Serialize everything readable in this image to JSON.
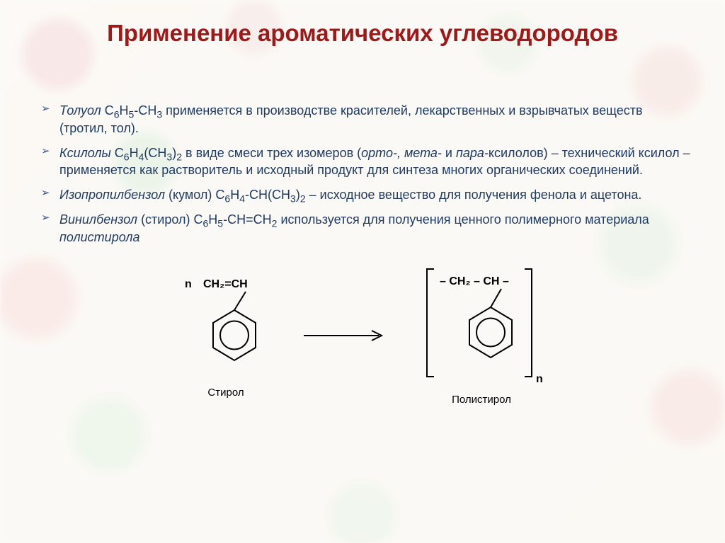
{
  "title": {
    "text": "Применение ароматических углеводородов",
    "color": "#a01818",
    "fontsize": 33
  },
  "body": {
    "text_color": "#1f3a63",
    "fontsize": 18
  },
  "bullets": [
    {
      "term": "Толуол",
      "formula_html": " C<sub>6</sub>H<sub>5</sub>-CH<sub>3</sub> ",
      "rest": "применяется в производстве красителей, лекарственных и взрывчатых веществ (тротил, тол)."
    },
    {
      "term": "Ксилолы",
      "formula_html": " C<sub>6</sub>H<sub>4</sub>(CH<sub>3</sub>)<sub>2</sub> ",
      "rest_html": "в виде смеси трех изомеров (<span class=\"term\">орто-, мета-</span> и <span class=\"term\">пара-</span>ксилолов) – технический ксилол – применяется как растворитель и исходный продукт для синтеза многих органических соединений."
    },
    {
      "term": "Изопропилбензол",
      "paren": " (кумол)",
      "formula_html": " C<sub>6</sub>H<sub>4</sub>-CH(CH<sub>3</sub>)<sub>2</sub> ",
      "rest": "– исходное вещество для получения фенола и ацетона."
    },
    {
      "term": "Винилбензол",
      "paren": " (стирол)",
      "formula_html": " C<sub>6</sub>H<sub>5</sub>-CH=CH<sub>2</sub> ",
      "rest_html": "используется для получения ценного полимерного материала <span class=\"term\">полистирола</span>"
    }
  ],
  "diagram": {
    "left": {
      "prefix": "n",
      "top_formula": "CH₂=CH",
      "label": "Стирол"
    },
    "right": {
      "top_formula": "– CH₂ – CH –",
      "subscript": "n",
      "label": "Полистирол"
    },
    "stroke": "#000000",
    "ring_fill": "none"
  },
  "colors": {
    "background": "#f5f0e8",
    "bullet_marker": "#3a5a8a"
  }
}
